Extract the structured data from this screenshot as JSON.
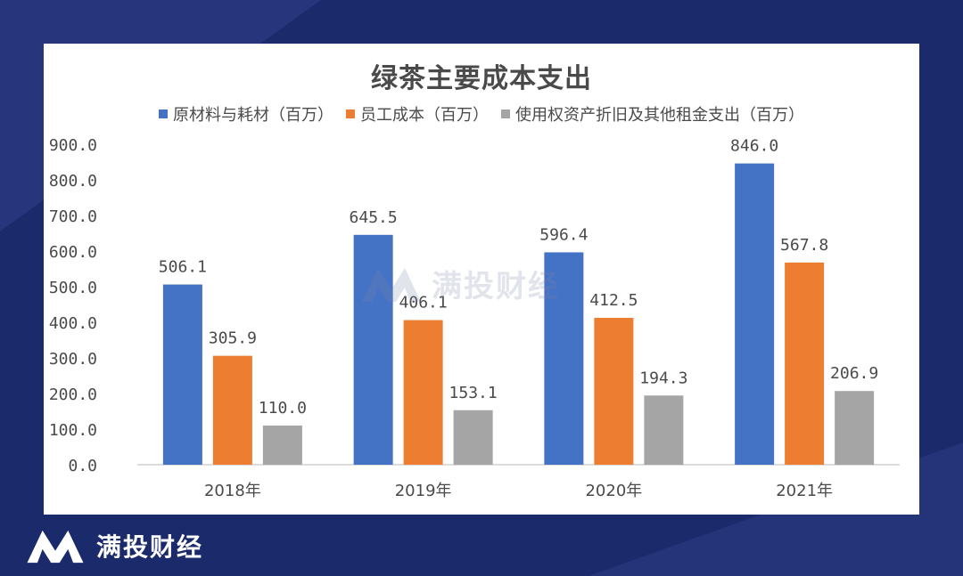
{
  "chart_data": {
    "type": "bar",
    "title": "绿茶主要成本支出",
    "categories": [
      "2018年",
      "2019年",
      "2020年",
      "2021年"
    ],
    "series": [
      {
        "name": "原材料与耗材（百万）",
        "color": "#4472c4",
        "values": [
          506.1,
          645.5,
          596.4,
          846.0
        ]
      },
      {
        "name": "员工成本（百万）",
        "color": "#ed7d31",
        "values": [
          305.9,
          406.1,
          412.5,
          567.8
        ]
      },
      {
        "name": "使用权资产折旧及其他租金支出（百万）",
        "color": "#a5a5a5",
        "values": [
          110.0,
          153.1,
          194.3,
          206.9
        ]
      }
    ],
    "ylim": [
      0,
      900
    ],
    "yticks": [
      "0.0",
      "100.0",
      "200.0",
      "300.0",
      "400.0",
      "500.0",
      "600.0",
      "700.0",
      "800.0",
      "900.0"
    ],
    "grid": false,
    "legend_position": "top"
  },
  "watermark": {
    "text": "满投财经",
    "icon": "brand-m-logo-icon"
  },
  "footer": {
    "brand": "满投财经",
    "icon": "brand-m-logo-icon"
  }
}
